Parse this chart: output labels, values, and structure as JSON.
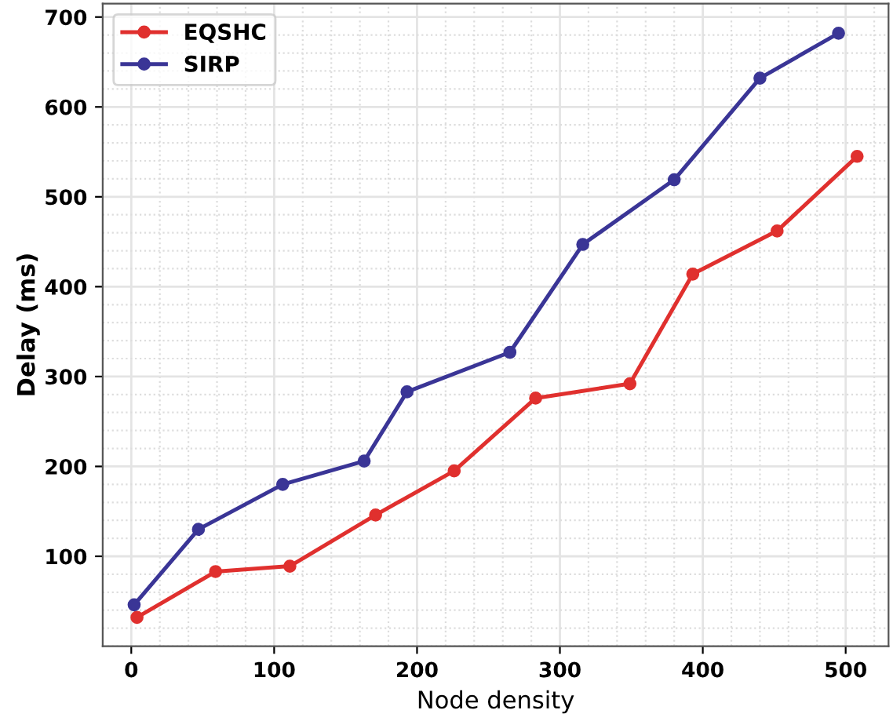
{
  "chart_data": {
    "type": "line",
    "xlabel": "Node density",
    "ylabel": "Delay (ms)",
    "xlim": [
      -20,
      530
    ],
    "xticks": [
      0,
      100,
      200,
      300,
      400,
      500
    ],
    "ylim": [
      0,
      715
    ],
    "yticks": [
      100,
      200,
      300,
      400,
      500,
      600,
      700
    ],
    "grid": true,
    "legend": "top left",
    "marker": "circle",
    "line_style": "solid",
    "series": [
      {
        "name": "EQSHC",
        "color": "#e0302e",
        "x": [
          4,
          59,
          111,
          171,
          226,
          283,
          349,
          393,
          452,
          508
        ],
        "values": [
          32,
          83,
          89,
          146,
          195,
          276,
          292,
          414,
          462,
          545
        ]
      },
      {
        "name": "SIRP",
        "color": "#3a3596",
        "x": [
          2,
          47,
          106,
          163,
          193,
          265,
          316,
          380,
          440,
          495
        ],
        "values": [
          46,
          130,
          180,
          206,
          283,
          327,
          447,
          519,
          632,
          682
        ]
      }
    ]
  }
}
